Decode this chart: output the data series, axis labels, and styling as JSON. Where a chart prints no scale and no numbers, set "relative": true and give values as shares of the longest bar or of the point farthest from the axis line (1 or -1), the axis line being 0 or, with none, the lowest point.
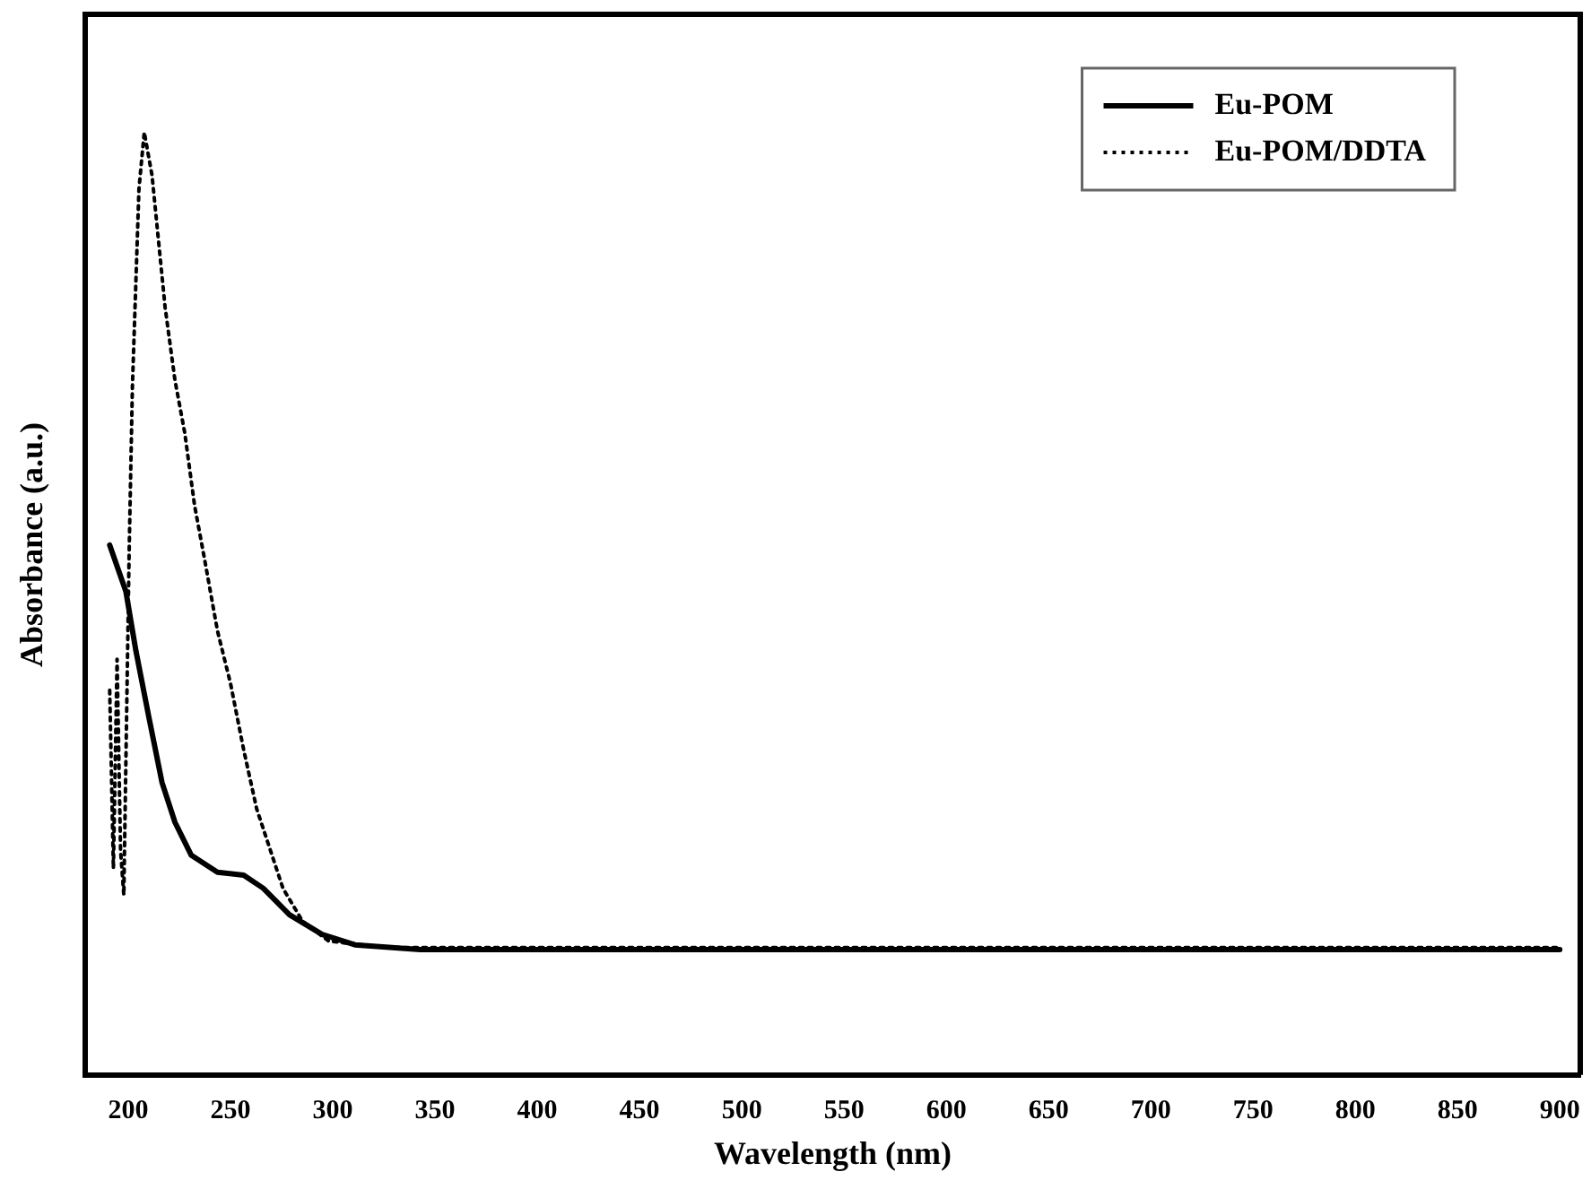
{
  "chart_data": {
    "type": "line",
    "xlabel": "Wavelength (nm)",
    "ylabel": "Absorbance (a.u.)",
    "relative": true,
    "xlim": [
      179,
      910
    ],
    "xticks": [
      200,
      250,
      300,
      350,
      400,
      450,
      500,
      550,
      600,
      650,
      700,
      750,
      800,
      850,
      900
    ],
    "legend": "top right",
    "grid": false,
    "marker": "none",
    "series": [
      {
        "name": "Eu-POM",
        "color": "#000000",
        "line_style": "solid",
        "x": [
          190.9,
          198.8,
          203.7,
          210,
          216.5,
          222.8,
          230.8,
          243.6,
          256.4,
          266,
          278.8,
          294.8,
          310.8,
          342.7,
          400,
          500,
          600,
          700,
          800,
          900
        ],
        "values": [
          0.562,
          0.513,
          0.45,
          0.38,
          0.31,
          0.268,
          0.233,
          0.215,
          0.212,
          0.198,
          0.17,
          0.149,
          0.138,
          0.133,
          0.133,
          0.133,
          0.133,
          0.133,
          0.133,
          0.133
        ]
      },
      {
        "name": "Eu-POM/DDTA",
        "color": "#000000",
        "line_style": "dotted",
        "x": [
          190.9,
          192.7,
          194.5,
          196.2,
          197.8,
          200.4,
          202,
          203.6,
          205.2,
          207.8,
          211.6,
          214.8,
          218,
          222.8,
          227.6,
          232.4,
          237.2,
          243.6,
          250,
          256.4,
          262.8,
          269.2,
          275.6,
          285.2,
          298,
          326.8,
          400,
          500,
          600,
          700,
          800,
          900
        ],
        "values": [
          0.408,
          0.219,
          0.441,
          0.238,
          0.191,
          0.555,
          0.73,
          0.835,
          0.94,
          1,
          0.954,
          0.884,
          0.814,
          0.737,
          0.681,
          0.604,
          0.548,
          0.471,
          0.415,
          0.345,
          0.282,
          0.24,
          0.198,
          0.163,
          0.142,
          0.135,
          0.135,
          0.135,
          0.135,
          0.135,
          0.135,
          0.135
        ]
      }
    ]
  }
}
